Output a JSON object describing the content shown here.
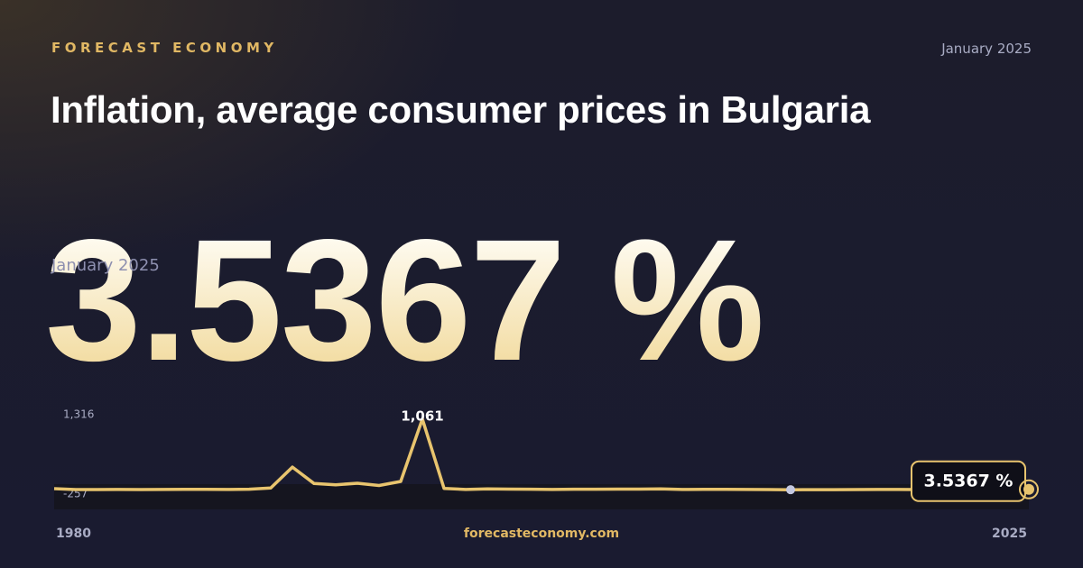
{
  "header": {
    "brand": "FORECAST ECONOMY",
    "date": "January 2025",
    "title": "Inflation, average consumer prices in Bulgaria"
  },
  "hero": {
    "value": "3.5367 %",
    "date": "January 2025"
  },
  "chart_data": {
    "type": "line",
    "x": [
      1980,
      1981,
      1982,
      1983,
      1984,
      1985,
      1986,
      1987,
      1988,
      1989,
      1990,
      1991,
      1992,
      1993,
      1994,
      1995,
      1996,
      1997,
      1998,
      1999,
      2000,
      2001,
      2002,
      2003,
      2004,
      2005,
      2006,
      2007,
      2008,
      2009,
      2010,
      2011,
      2012,
      2013,
      2014,
      2015,
      2016,
      2017,
      2018,
      2019,
      2020,
      2021,
      2022,
      2023,
      2024,
      2025
    ],
    "series": [
      {
        "name": "Inflation",
        "color": "#e8c46e",
        "values": [
          14.0,
          0.5,
          0.3,
          1.4,
          0.7,
          1.7,
          3.5,
          2.7,
          2.4,
          6.4,
          23.8,
          338.5,
          91.3,
          72.9,
          96.1,
          62.1,
          123.0,
          1061,
          18.7,
          2.6,
          10.3,
          7.4,
          5.8,
          2.3,
          6.1,
          6.0,
          7.4,
          7.6,
          12.0,
          2.5,
          3.0,
          3.4,
          2.4,
          0.4,
          -1.6,
          -1.1,
          -1.3,
          1.2,
          2.6,
          2.5,
          1.2,
          2.8,
          13.0,
          8.6,
          2.6,
          3.5367
        ],
        "value_labels": [
          null,
          null,
          null,
          null,
          null,
          null,
          null,
          null,
          null,
          null,
          null,
          null,
          null,
          null,
          null,
          null,
          null,
          "1,061",
          null,
          null,
          null,
          null,
          null,
          null,
          null,
          null,
          null,
          null,
          null,
          null,
          null,
          null,
          null,
          null,
          null,
          null,
          null,
          null,
          null,
          null,
          null,
          null,
          null,
          null,
          null,
          "3.5367 %"
        ]
      }
    ],
    "xlim": [
      1980,
      2025
    ],
    "xticks": [
      1980,
      2025
    ],
    "ylim": [
      -257,
      1316
    ],
    "yticks": [
      {
        "value": -257,
        "label": "-257"
      },
      {
        "value": 1316,
        "label": "1,316"
      }
    ]
  },
  "footer": {
    "site": "forecasteconomy.com"
  }
}
